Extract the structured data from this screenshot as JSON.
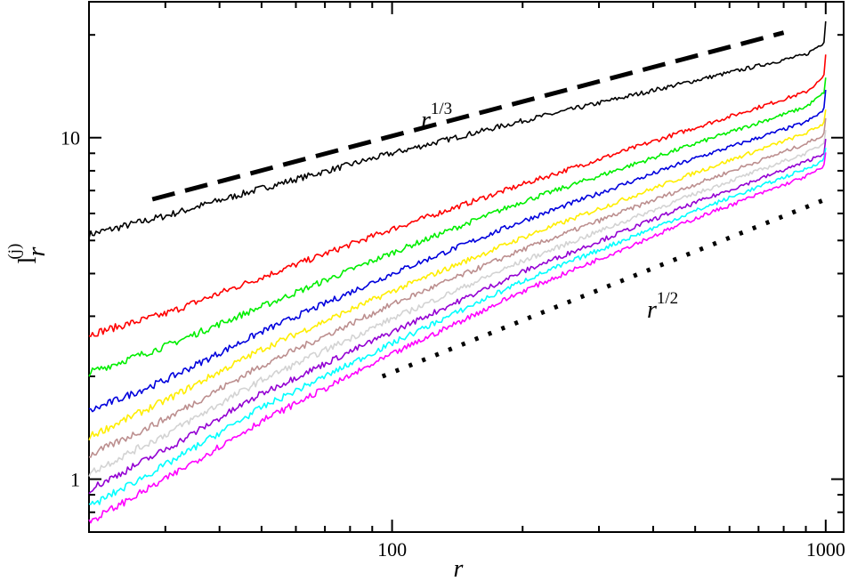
{
  "chart_data": {
    "type": "line",
    "title": "",
    "xlabel": "r",
    "ylabel": {
      "base": "l",
      "subscript": "r",
      "superscript": "(j)"
    },
    "xscale": "log",
    "yscale": "log",
    "xlim": [
      20,
      1100
    ],
    "ylim": [
      0.7,
      25
    ],
    "x_ticks": [
      {
        "value": 100,
        "label": "100"
      },
      {
        "value": 1000,
        "label": "1000"
      }
    ],
    "y_ticks": [
      {
        "value": 1,
        "label": "1"
      },
      {
        "value": 10,
        "label": "10"
      }
    ],
    "grid": false,
    "legend": "none",
    "series": [
      {
        "color": "#000000",
        "x": [
          20,
          30,
          50,
          100,
          200,
          500,
          900,
          990,
          1000
        ],
        "y": [
          5.2,
          5.9,
          7.1,
          9.0,
          11.2,
          14.7,
          17.5,
          19.0,
          22.0
        ]
      },
      {
        "color": "#ff0000",
        "x": [
          20,
          30,
          50,
          100,
          200,
          500,
          900,
          990,
          1000
        ],
        "y": [
          2.65,
          3.05,
          3.9,
          5.4,
          7.3,
          10.7,
          13.6,
          15.0,
          17.5
        ]
      },
      {
        "color": "#00ee00",
        "x": [
          20,
          30,
          50,
          100,
          200,
          500,
          900,
          990,
          1000
        ],
        "y": [
          2.05,
          2.45,
          3.2,
          4.6,
          6.5,
          9.6,
          12.3,
          13.5,
          15.0
        ]
      },
      {
        "color": "#0000dd",
        "x": [
          20,
          30,
          50,
          100,
          200,
          500,
          900,
          990,
          1000
        ],
        "y": [
          1.58,
          1.95,
          2.7,
          4.0,
          5.7,
          8.7,
          11.1,
          12.0,
          13.8
        ]
      },
      {
        "color": "#ffee00",
        "x": [
          20,
          30,
          50,
          100,
          200,
          500,
          900,
          990,
          1000
        ],
        "y": [
          1.33,
          1.7,
          2.4,
          3.55,
          5.1,
          7.9,
          10.3,
          11.0,
          12.2
        ]
      },
      {
        "color": "#bc8f8f",
        "x": [
          20,
          30,
          50,
          100,
          200,
          500,
          900,
          990,
          1000
        ],
        "y": [
          1.17,
          1.5,
          2.15,
          3.25,
          4.7,
          7.3,
          9.6,
          10.2,
          11.3
        ]
      },
      {
        "color": "#d3d3d3",
        "x": [
          20,
          30,
          50,
          100,
          200,
          500,
          900,
          990,
          1000
        ],
        "y": [
          1.04,
          1.35,
          1.95,
          2.95,
          4.35,
          6.85,
          9.0,
          9.6,
          10.6
        ]
      },
      {
        "color": "#9400d3",
        "x": [
          20,
          30,
          50,
          100,
          200,
          500,
          900,
          990,
          1000
        ],
        "y": [
          0.93,
          1.22,
          1.78,
          2.7,
          4.05,
          6.45,
          8.5,
          9.0,
          9.9
        ]
      },
      {
        "color": "#00ffff",
        "x": [
          20,
          30,
          50,
          100,
          200,
          500,
          900,
          990,
          1000
        ],
        "y": [
          0.83,
          1.1,
          1.62,
          2.5,
          3.8,
          6.1,
          8.1,
          8.6,
          9.4
        ]
      },
      {
        "color": "#ff00ff",
        "x": [
          20,
          30,
          50,
          100,
          200,
          500,
          900,
          990,
          1000
        ],
        "y": [
          0.75,
          1.0,
          1.48,
          2.32,
          3.55,
          5.8,
          7.7,
          8.2,
          9.0
        ]
      }
    ],
    "guides": [
      {
        "label_base": "r",
        "label_exp": "1/3",
        "style": "dashed",
        "color": "#000000",
        "x": [
          28,
          800
        ],
        "y": [
          6.6,
          20.3
        ]
      },
      {
        "label_base": "r",
        "label_exp": "1/2",
        "style": "dotted",
        "color": "#000000",
        "x": [
          95,
          1000
        ],
        "y": [
          2.0,
          6.6
        ]
      }
    ]
  }
}
